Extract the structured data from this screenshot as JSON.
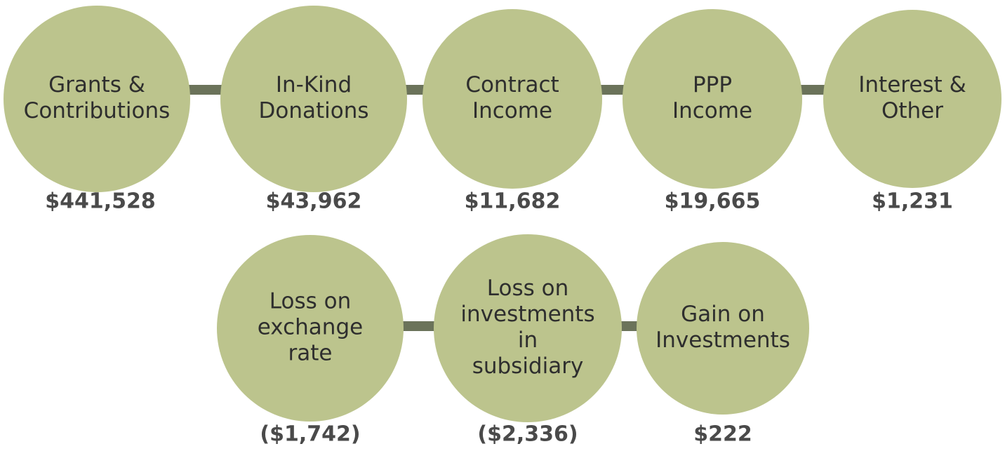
{
  "nodes": [
    {
      "label_lines": [
        "Grants &",
        "Contributions"
      ],
      "value": "$441,528"
    },
    {
      "label_lines": [
        "In-Kind",
        "Donations"
      ],
      "value": "$43,962"
    },
    {
      "label_lines": [
        "Contract",
        "Income"
      ],
      "value": "$11,682"
    },
    {
      "label_lines": [
        "PPP",
        "Income"
      ],
      "value": "$19,665"
    },
    {
      "label_lines": [
        "Interest &",
        "Other"
      ],
      "value": "$1,231"
    },
    {
      "label_lines": [
        "Loss on",
        "exchange",
        "rate"
      ],
      "value": "($1,742)"
    },
    {
      "label_lines": [
        "Loss on",
        "investments",
        "in",
        "subsidiary"
      ],
      "value": "($2,336)"
    },
    {
      "label_lines": [
        "Gain on",
        "Investments"
      ],
      "value": "$222"
    }
  ]
}
